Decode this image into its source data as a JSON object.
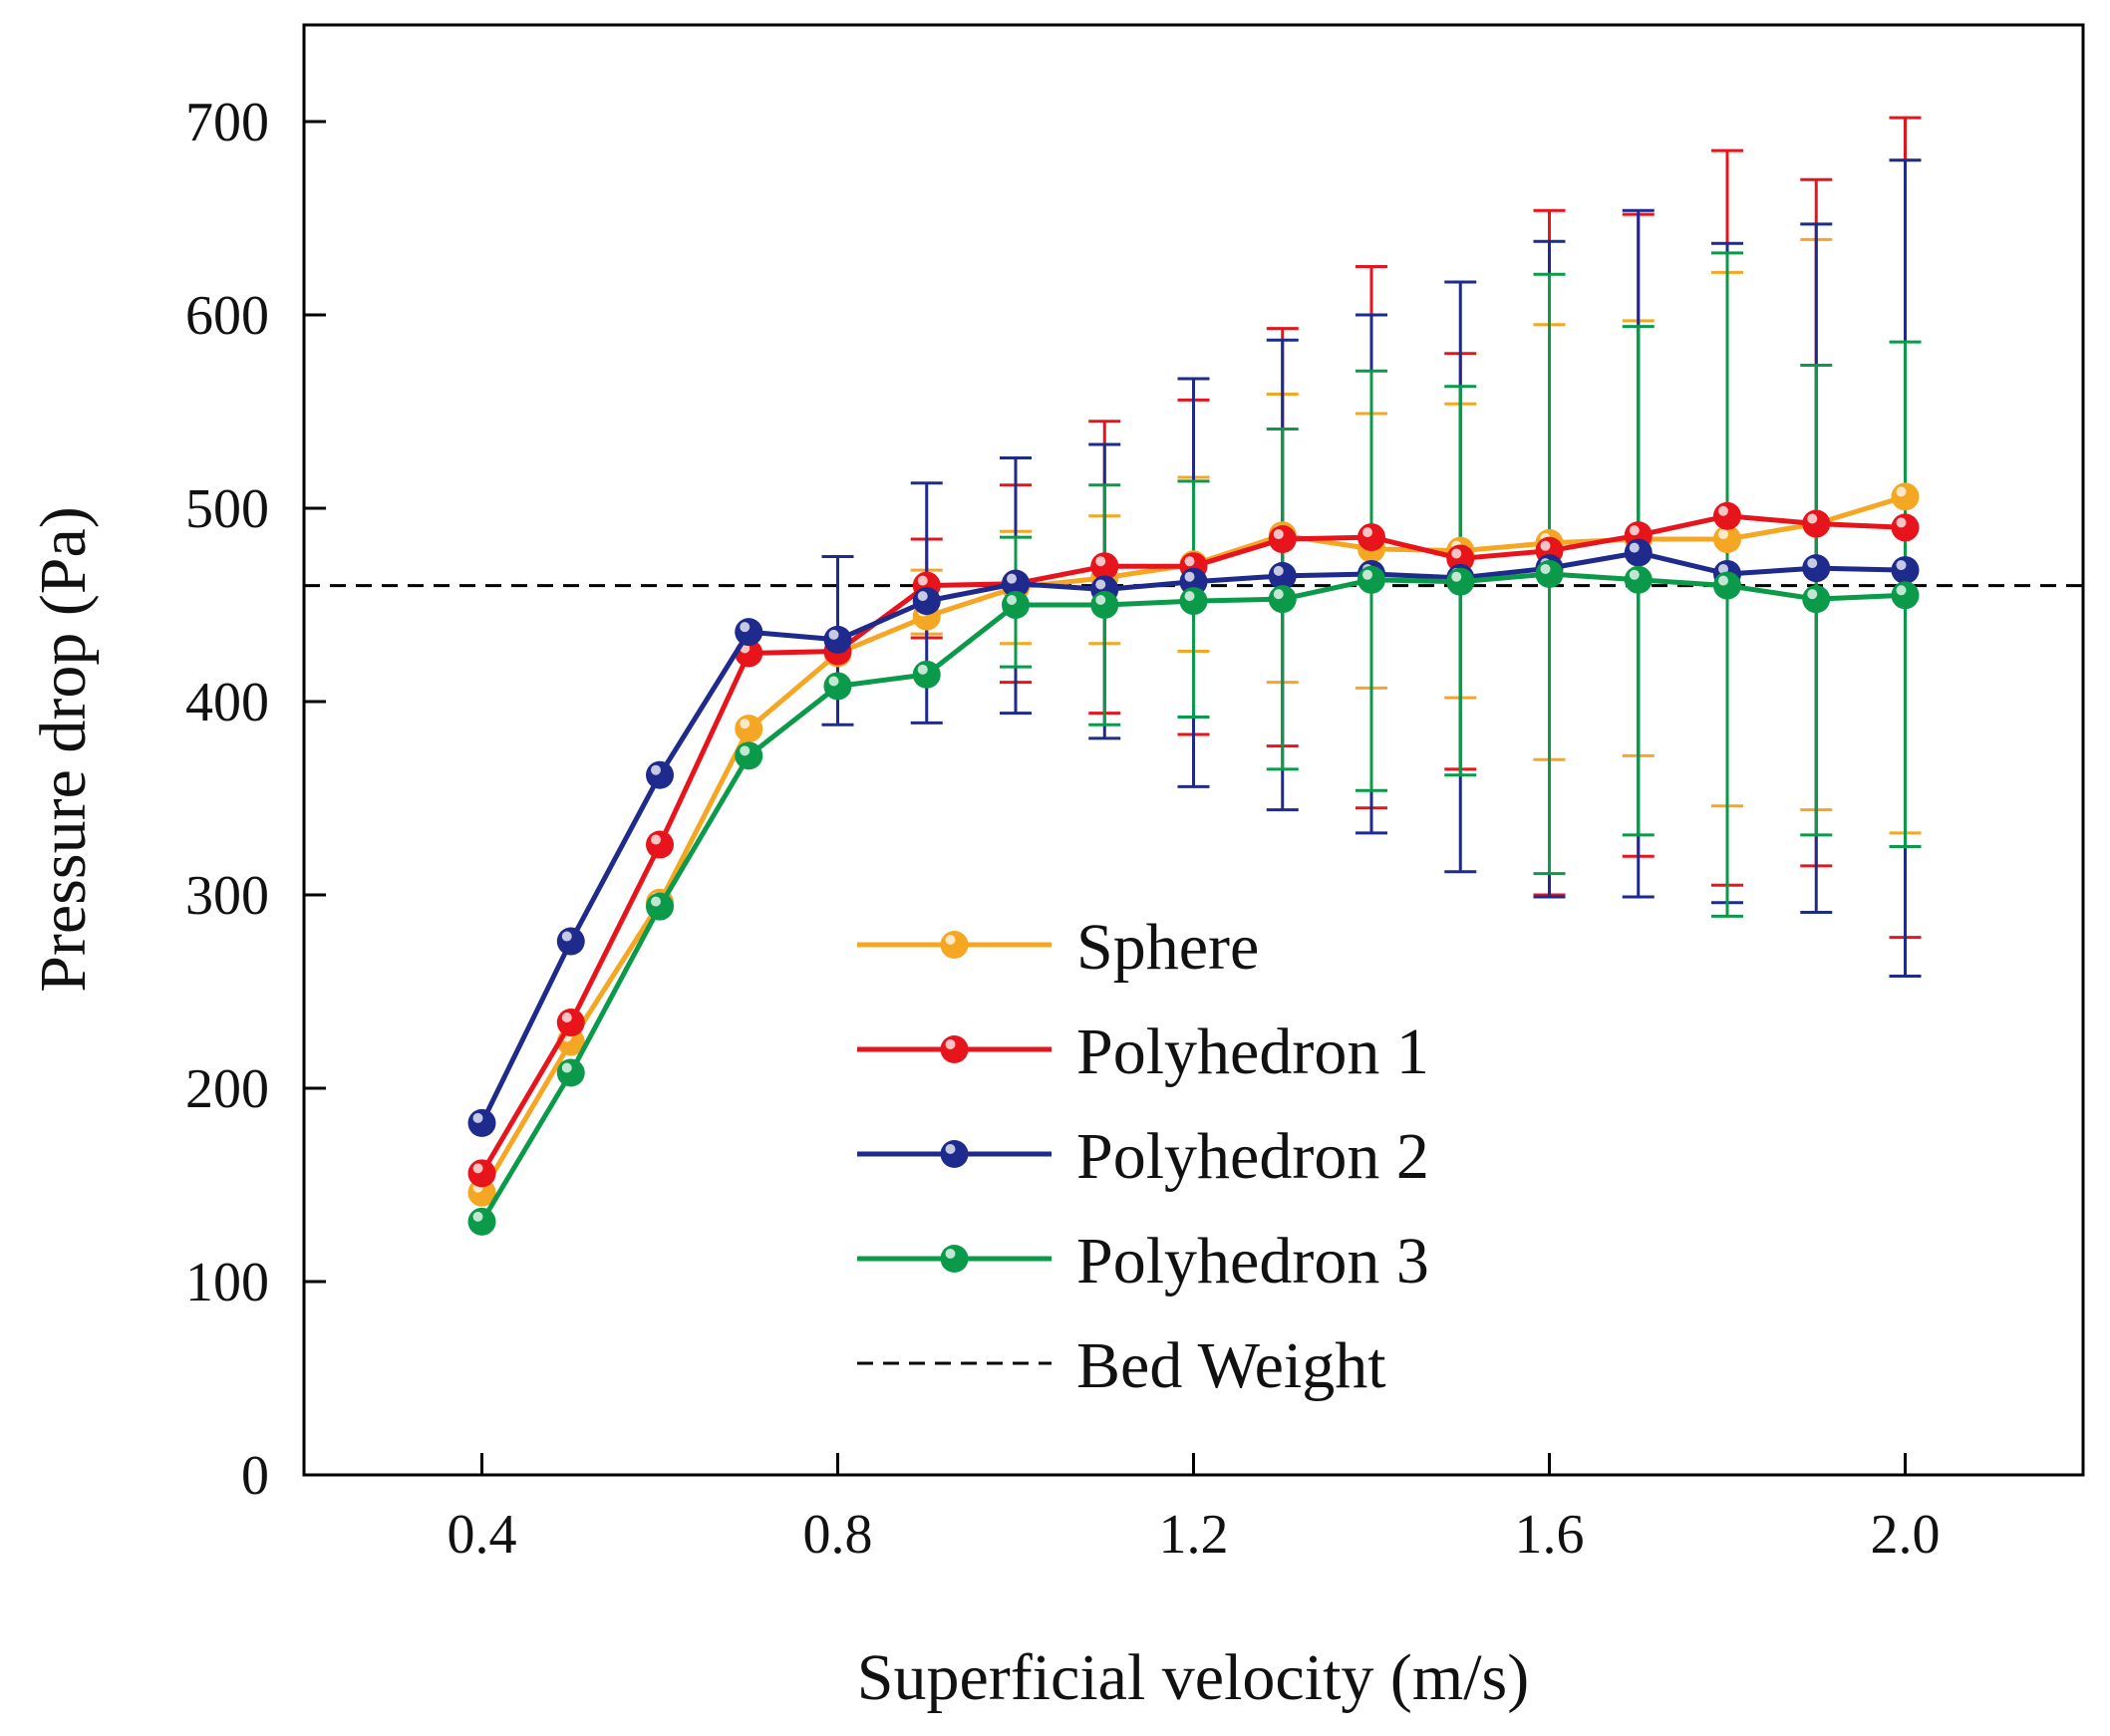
{
  "chart_data": {
    "type": "line",
    "title": "",
    "xlabel": "Superficial velocity (m/s)",
    "ylabel": "Pressure drop (Pa)",
    "xlim": [
      0.2,
      2.2
    ],
    "ylim": [
      0,
      750
    ],
    "x_ticks": [
      0.4,
      0.8,
      1.2,
      1.6,
      2.0
    ],
    "x_tick_labels": [
      "0.4",
      "0.8",
      "1.2",
      "1.6",
      "2.0"
    ],
    "y_ticks": [
      0,
      100,
      200,
      300,
      400,
      500,
      600,
      700
    ],
    "y_tick_labels": [
      "0",
      "100",
      "200",
      "300",
      "400",
      "500",
      "600",
      "700"
    ],
    "grid": false,
    "legend_position": "bottom-center",
    "x": [
      0.4,
      0.5,
      0.6,
      0.7,
      0.8,
      0.9,
      1.0,
      1.1,
      1.2,
      1.3,
      1.4,
      1.5,
      1.6,
      1.7,
      1.8,
      1.9,
      2.0
    ],
    "series": [
      {
        "name": "Sphere",
        "color": "#F5A623",
        "values": [
          146,
          224,
          296,
          386,
          425,
          444,
          459,
          464,
          471,
          486,
          479,
          478,
          482,
          484,
          484,
          492,
          506
        ],
        "err_low": [
          null,
          null,
          null,
          null,
          null,
          435,
          430,
          430,
          426,
          410,
          407,
          402,
          370,
          372,
          346,
          344,
          332
        ],
        "err_high": [
          null,
          null,
          null,
          null,
          null,
          468,
          488,
          496,
          516,
          559,
          549,
          554,
          595,
          597,
          622,
          639,
          680
        ]
      },
      {
        "name": "Polyhedron 1",
        "color": "#E8141B",
        "values": [
          156,
          234,
          326,
          425,
          426,
          460,
          461,
          470,
          470,
          484,
          485,
          474,
          478,
          486,
          496,
          492,
          490
        ],
        "err_low": [
          null,
          null,
          null,
          null,
          null,
          433,
          410,
          394,
          383,
          377,
          345,
          365,
          300,
          320,
          305,
          315,
          278
        ],
        "err_high": [
          null,
          null,
          null,
          null,
          null,
          484,
          512,
          545,
          556,
          593,
          625,
          580,
          654,
          652,
          685,
          670,
          702
        ]
      },
      {
        "name": "Polyhedron 2",
        "color": "#1E2A8C",
        "values": [
          182,
          276,
          362,
          436,
          432,
          452,
          461,
          458,
          462,
          465,
          466,
          464,
          469,
          477,
          466,
          469,
          468
        ],
        "err_low": [
          null,
          null,
          null,
          null,
          388,
          389,
          394,
          381,
          356,
          344,
          332,
          312,
          299,
          299,
          296,
          291,
          258
        ],
        "err_high": [
          null,
          null,
          null,
          null,
          475,
          513,
          526,
          533,
          567,
          587,
          600,
          617,
          638,
          654,
          637,
          647,
          680
        ]
      },
      {
        "name": "Polyhedron 3",
        "color": "#0B9A4A",
        "values": [
          131,
          208,
          294,
          372,
          408,
          414,
          450,
          450,
          452,
          453,
          463,
          462,
          466,
          463,
          460,
          453,
          455
        ],
        "err_low": [
          null,
          null,
          null,
          null,
          null,
          null,
          418,
          388,
          392,
          365,
          354,
          362,
          311,
          331,
          289,
          331,
          325
        ],
        "err_high": [
          null,
          null,
          null,
          null,
          null,
          null,
          485,
          512,
          514,
          541,
          571,
          563,
          621,
          594,
          632,
          574,
          586
        ]
      }
    ],
    "reference_lines": [
      {
        "name": "Bed Weight",
        "type": "horizontal",
        "y": 460,
        "style": "dashed",
        "color": "#000000"
      }
    ],
    "legend": [
      "Sphere",
      "Polyhedron 1",
      "Polyhedron 2",
      "Polyhedron 3",
      "Bed Weight"
    ]
  }
}
